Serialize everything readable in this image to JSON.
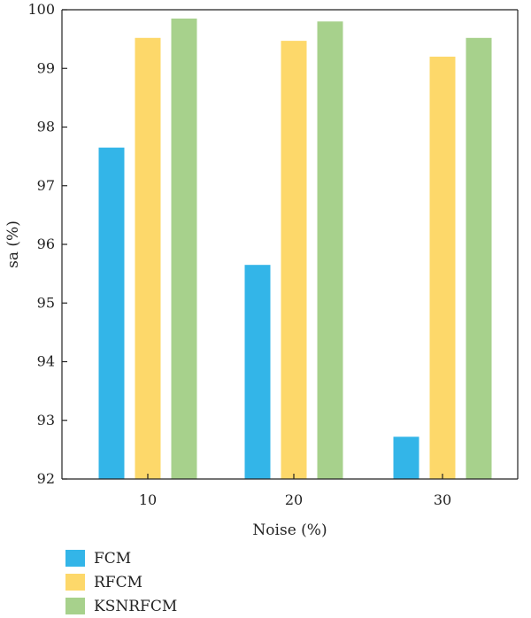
{
  "chart_data": {
    "type": "bar",
    "categories": [
      "10",
      "20",
      "30"
    ],
    "series": [
      {
        "name": "FCM",
        "color": "#33b5e8",
        "values": [
          97.65,
          95.65,
          92.72
        ]
      },
      {
        "name": "RFCM",
        "color": "#fdd86a",
        "values": [
          99.52,
          99.47,
          99.2
        ]
      },
      {
        "name": "KSNRFCM",
        "color": "#a7d18c",
        "values": [
          99.85,
          99.8,
          99.52
        ]
      }
    ],
    "xlabel": "Noise (%)",
    "ylabel": "sa (%)",
    "ylim": [
      92,
      100
    ],
    "yticks": [
      "92",
      "93",
      "94",
      "95",
      "96",
      "97",
      "98",
      "99",
      "100"
    ],
    "grid": false,
    "legend_position": "bottom-left"
  }
}
